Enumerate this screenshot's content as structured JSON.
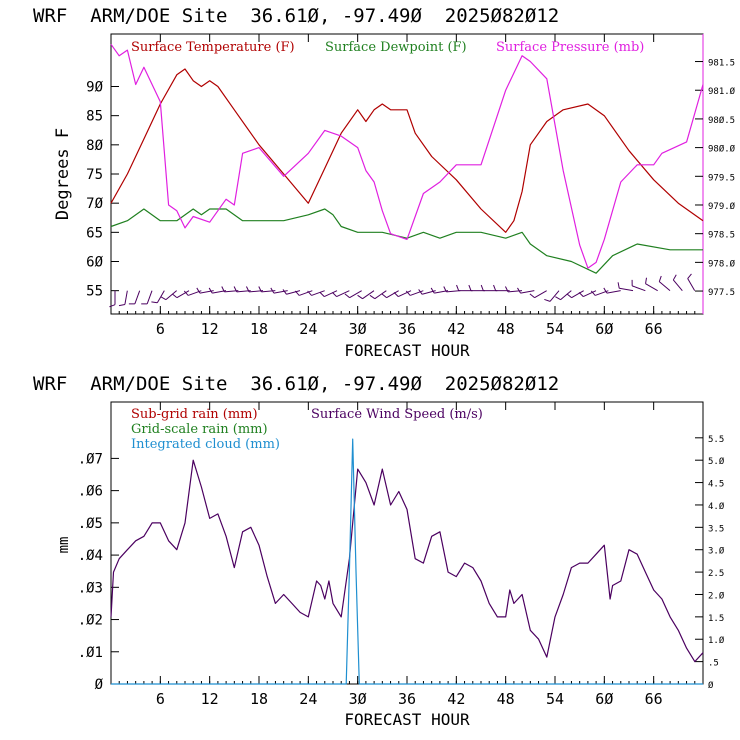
{
  "chart_data": [
    {
      "type": "line",
      "title": "WRF  ARM/DOE Site  36.61Ø, -97.49Ø  2025Ø82Ø12",
      "xlabel": "FORECAST HOUR",
      "ylabel": "Degrees F",
      "xlim": [
        0,
        72
      ],
      "ylim": [
        51,
        99
      ],
      "y2lim": [
        977.1,
        981.98
      ],
      "x_ticks": [
        6,
        12,
        18,
        24,
        30,
        36,
        42,
        48,
        54,
        60,
        66
      ],
      "x_tick_labels": [
        "6",
        "12",
        "18",
        "24",
        "3Ø",
        "36",
        "42",
        "48",
        "54",
        "6Ø",
        "66"
      ],
      "y_ticks": [
        55,
        60,
        65,
        70,
        75,
        80,
        85,
        90
      ],
      "y_tick_labels": [
        "55",
        "6Ø",
        "65",
        "7Ø",
        "75",
        "8Ø",
        "85",
        "9Ø"
      ],
      "y2_ticks": [
        977.5,
        978.0,
        978.5,
        979.0,
        979.5,
        980.0,
        980.5,
        981.0,
        981.5
      ],
      "y2_tick_labels": [
        "977.5",
        "978.Ø",
        "978.5",
        "979.Ø",
        "979.5",
        "98Ø.Ø",
        "98Ø.5",
        "981.Ø",
        "981.5"
      ],
      "legend": [
        {
          "label": "Surface Temperature (F)",
          "color": "#b00000"
        },
        {
          "label": "Surface Dewpoint (F)",
          "color": "#208020"
        },
        {
          "label": "Surface Pressure (mb)",
          "color": "#e020e0"
        }
      ],
      "series": [
        {
          "name": "Surface Temperature (F)",
          "axis": "left",
          "color": "#b00000",
          "x": [
            0,
            2,
            4,
            6,
            8,
            9,
            10,
            11,
            12,
            13,
            15,
            18,
            21,
            24,
            26,
            28,
            30,
            31,
            32,
            33,
            34,
            36,
            37,
            39,
            42,
            45,
            48,
            49,
            50,
            51,
            53,
            55,
            58,
            60,
            63,
            66,
            69,
            72
          ],
          "y": [
            70,
            75,
            81,
            87,
            92,
            93,
            91,
            90,
            91,
            90,
            86,
            80,
            75,
            70,
            76,
            82,
            86,
            84,
            86,
            87,
            86,
            86,
            82,
            78,
            74,
            69,
            65,
            67,
            72,
            80,
            84,
            86,
            87,
            85,
            79,
            74,
            70,
            67
          ]
        },
        {
          "name": "Surface Dewpoint (F)",
          "axis": "left",
          "color": "#208020",
          "x": [
            0,
            2,
            4,
            6,
            8,
            10,
            11,
            12,
            14,
            16,
            18,
            21,
            24,
            26,
            27,
            28,
            30,
            33,
            36,
            38,
            40,
            42,
            45,
            48,
            50,
            51,
            53,
            56,
            59,
            61,
            64,
            68,
            72
          ],
          "y": [
            66,
            67,
            69,
            67,
            67,
            69,
            68,
            69,
            69,
            67,
            67,
            67,
            68,
            69,
            68,
            66,
            65,
            65,
            64,
            65,
            64,
            65,
            65,
            64,
            65,
            63,
            61,
            60,
            58,
            61,
            63,
            62,
            62
          ]
        },
        {
          "name": "Surface Pressure (mb)",
          "axis": "right",
          "color": "#e020e0",
          "x": [
            0,
            1,
            2,
            3,
            4,
            6,
            7,
            8,
            9,
            10,
            12,
            14,
            15,
            16,
            18,
            21,
            24,
            26,
            28,
            30,
            31,
            32,
            33,
            34,
            36,
            38,
            40,
            42,
            45,
            48,
            50,
            51,
            53,
            55,
            57,
            58,
            59,
            60,
            62,
            64,
            66,
            67,
            70,
            72
          ],
          "y": [
            981.8,
            981.6,
            981.7,
            981.1,
            981.4,
            980.8,
            979.0,
            978.9,
            978.6,
            978.8,
            978.7,
            979.1,
            979.0,
            979.9,
            980.0,
            979.5,
            979.9,
            980.3,
            980.2,
            980.0,
            979.6,
            979.4,
            978.9,
            978.5,
            978.4,
            979.2,
            979.4,
            979.7,
            979.7,
            981.0,
            981.6,
            981.5,
            981.2,
            979.6,
            978.3,
            977.9,
            978.0,
            978.4,
            979.4,
            979.7,
            979.7,
            979.9,
            980.1,
            981.1
          ]
        }
      ],
      "wind_barbs": {
        "y": 55,
        "x": [
          0,
          1.5,
          3,
          4.5,
          6,
          7.5,
          9,
          10.5,
          12,
          13.5,
          15,
          16.5,
          18,
          19.5,
          21,
          22.5,
          24,
          25.5,
          27,
          28.5,
          30,
          31.5,
          33,
          34.5,
          36,
          37.5,
          39,
          40.5,
          42,
          43.5,
          45,
          46.5,
          48,
          49.5,
          51,
          52.5,
          54,
          55.5,
          57,
          58.5,
          60,
          61.5,
          63,
          64.5,
          66,
          67.5,
          69,
          70.5
        ],
        "direction_deg": [
          180,
          190,
          200,
          200,
          210,
          230,
          240,
          250,
          260,
          260,
          265,
          265,
          265,
          265,
          260,
          255,
          250,
          250,
          245,
          245,
          240,
          235,
          235,
          240,
          245,
          250,
          255,
          260,
          265,
          270,
          270,
          270,
          270,
          265,
          260,
          240,
          220,
          230,
          240,
          245,
          250,
          260,
          280,
          290,
          300,
          310,
          320,
          330
        ],
        "color": "#4b0060"
      }
    },
    {
      "type": "line",
      "title": "WRF  ARM/DOE Site  36.61Ø, -97.49Ø  2025Ø82Ø12",
      "xlabel": "FORECAST HOUR",
      "ylabel": "mm",
      "xlim": [
        0,
        72
      ],
      "ylim": [
        0,
        0.0875
      ],
      "y2lim": [
        0,
        6.3
      ],
      "x_ticks": [
        6,
        12,
        18,
        24,
        30,
        36,
        42,
        48,
        54,
        60,
        66
      ],
      "x_tick_labels": [
        "6",
        "12",
        "18",
        "24",
        "3Ø",
        "36",
        "42",
        "48",
        "54",
        "6Ø",
        "66"
      ],
      "y_ticks": [
        0,
        0.01,
        0.02,
        0.03,
        0.04,
        0.05,
        0.06,
        0.07
      ],
      "y_tick_labels": [
        "Ø",
        ".Ø1",
        ".Ø2",
        ".Ø3",
        ".Ø4",
        ".Ø5",
        ".Ø6",
        ".Ø7"
      ],
      "y2_ticks": [
        0,
        0.5,
        1.0,
        1.5,
        2.0,
        2.5,
        3.0,
        3.5,
        4.0,
        4.5,
        5.0,
        5.5
      ],
      "y2_tick_labels": [
        "Ø",
        ".5",
        "1.Ø",
        "1.5",
        "2.Ø",
        "2.5",
        "3.Ø",
        "3.5",
        "4.Ø",
        "4.5",
        "5.Ø",
        "5.5"
      ],
      "legend": [
        {
          "label": "Sub-grid rain (mm)",
          "color": "#b00000"
        },
        {
          "label": "Surface Wind Speed (m/s)",
          "color": "#4b0060"
        },
        {
          "label": "Grid-scale rain (mm)",
          "color": "#208020"
        },
        {
          "label": "Integrated cloud (mm)",
          "color": "#1f8fd0"
        }
      ],
      "series": [
        {
          "name": "Surface Wind Speed (m/s)",
          "axis": "right",
          "color": "#4b0060",
          "x": [
            0,
            0.3,
            1,
            2,
            3,
            4,
            5,
            6,
            7,
            8,
            9,
            10,
            11,
            12,
            13,
            14,
            15,
            16,
            17,
            18,
            19,
            20,
            21,
            22,
            23,
            24,
            25,
            25.5,
            26,
            26.5,
            27,
            28,
            29,
            30,
            31,
            32,
            33,
            34,
            35,
            36,
            37,
            38,
            39,
            40,
            41,
            42,
            43,
            44,
            45,
            46,
            47,
            48,
            48.5,
            49,
            50,
            51,
            52,
            53,
            54,
            55,
            56,
            57,
            58,
            59,
            60,
            60.7,
            61,
            62,
            63,
            64,
            65,
            66,
            67,
            68,
            69,
            70,
            71,
            72
          ],
          "y": [
            1.5,
            2.5,
            2.8,
            3.0,
            3.2,
            3.3,
            3.6,
            3.6,
            3.2,
            3.0,
            3.6,
            5.0,
            4.4,
            3.7,
            3.8,
            3.3,
            2.6,
            3.4,
            3.5,
            3.1,
            2.4,
            1.8,
            2.0,
            1.8,
            1.6,
            1.5,
            2.3,
            2.2,
            1.9,
            2.3,
            1.8,
            1.5,
            2.8,
            4.8,
            4.5,
            4.0,
            4.8,
            4.0,
            4.3,
            3.9,
            2.8,
            2.7,
            3.3,
            3.4,
            2.5,
            2.4,
            2.7,
            2.6,
            2.3,
            1.8,
            1.5,
            1.5,
            2.1,
            1.8,
            2.0,
            1.2,
            1.0,
            0.6,
            1.5,
            2.0,
            2.6,
            2.7,
            2.7,
            2.9,
            3.1,
            1.9,
            2.2,
            2.3,
            3.0,
            2.9,
            2.5,
            2.1,
            1.9,
            1.5,
            1.2,
            0.8,
            0.5,
            0.7
          ]
        },
        {
          "name": "Integrated cloud (mm)",
          "axis": "left",
          "color": "#1f8fd0",
          "x": [
            0,
            28.6,
            29.0,
            29.4,
            29.8,
            30.2,
            72
          ],
          "y": [
            0,
            0,
            0.035,
            0.076,
            0.035,
            0,
            0
          ]
        }
      ]
    }
  ]
}
